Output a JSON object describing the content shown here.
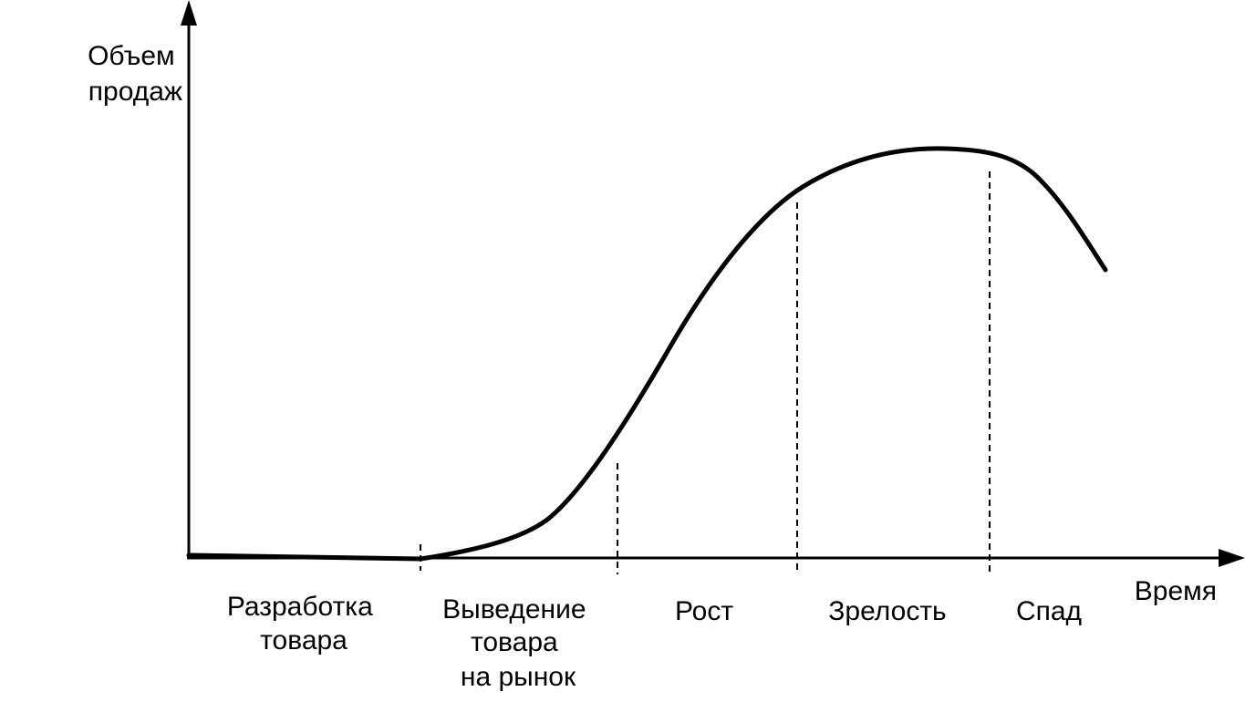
{
  "axes": {
    "y_label_lines": [
      "Объем",
      "продаж"
    ],
    "x_label": "Время"
  },
  "stages": [
    {
      "name": "stage-development",
      "lines": [
        "Разработка",
        "товара"
      ]
    },
    {
      "name": "stage-introduction",
      "lines": [
        "Выведение",
        "товара",
        "на рынок"
      ]
    },
    {
      "name": "stage-growth",
      "lines": [
        "Рост"
      ]
    },
    {
      "name": "stage-maturity",
      "lines": [
        "Зрелость"
      ]
    },
    {
      "name": "stage-decline",
      "lines": [
        "Спад"
      ]
    }
  ],
  "colors": {
    "ink": "#000000",
    "background": "#ffffff"
  }
}
